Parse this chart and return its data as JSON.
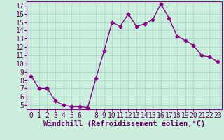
{
  "x": [
    0,
    1,
    2,
    3,
    4,
    5,
    6,
    7,
    8,
    9,
    10,
    11,
    12,
    13,
    14,
    15,
    16,
    17,
    18,
    19,
    20,
    21,
    22,
    23
  ],
  "y": [
    8.5,
    7.0,
    7.0,
    5.5,
    5.0,
    4.8,
    4.8,
    4.7,
    8.2,
    11.5,
    15.0,
    14.5,
    16.0,
    14.5,
    14.8,
    15.3,
    17.2,
    15.5,
    13.3,
    12.8,
    12.2,
    11.0,
    10.8,
    10.2
  ],
  "line_color": "#880088",
  "marker": "D",
  "markersize": 2.5,
  "linewidth": 1.0,
  "bg_color": "#cceedd",
  "grid_color": "#aaddcc",
  "xlabel": "Windchill (Refroidissement éolien,°C)",
  "xlabel_fontsize": 7.5,
  "tick_fontsize": 7,
  "ylim": [
    4.5,
    17.5
  ],
  "xlim": [
    -0.5,
    23.5
  ],
  "yticks": [
    5,
    6,
    7,
    8,
    9,
    10,
    11,
    12,
    13,
    14,
    15,
    16,
    17
  ],
  "xticks": [
    0,
    1,
    2,
    3,
    4,
    5,
    6,
    8,
    9,
    10,
    11,
    12,
    13,
    14,
    15,
    16,
    17,
    18,
    19,
    20,
    21,
    22,
    23
  ]
}
